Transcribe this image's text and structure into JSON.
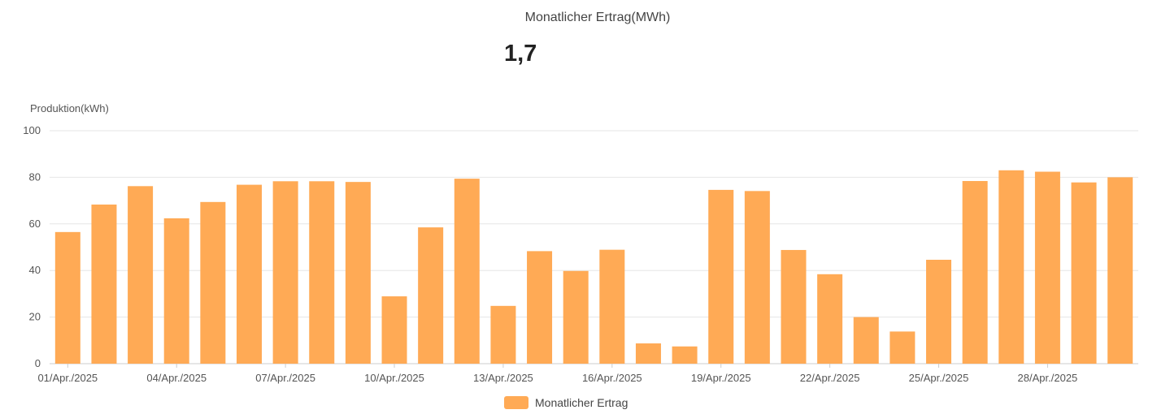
{
  "header": {
    "title": "Monatlicher Ertrag(MWh)",
    "value": "1,7"
  },
  "colors": {
    "bar": "#FFAA55",
    "grid": "#E6E6E6",
    "axis": "#CCCCCC"
  },
  "chart_data": {
    "type": "bar",
    "ylabel": "Produktion(kWh)",
    "ylim": [
      0,
      100
    ],
    "yticks": [
      0,
      20,
      40,
      60,
      80,
      100
    ],
    "grid": true,
    "legend_position": "bottom-center",
    "categories": [
      "01/Apr./2025",
      "02/Apr./2025",
      "03/Apr./2025",
      "04/Apr./2025",
      "05/Apr./2025",
      "06/Apr./2025",
      "07/Apr./2025",
      "08/Apr./2025",
      "09/Apr./2025",
      "10/Apr./2025",
      "11/Apr./2025",
      "12/Apr./2025",
      "13/Apr./2025",
      "14/Apr./2025",
      "15/Apr./2025",
      "16/Apr./2025",
      "17/Apr./2025",
      "18/Apr./2025",
      "19/Apr./2025",
      "20/Apr./2025",
      "21/Apr./2025",
      "22/Apr./2025",
      "23/Apr./2025",
      "24/Apr./2025",
      "25/Apr./2025",
      "26/Apr./2025",
      "27/Apr./2025",
      "28/Apr./2025",
      "29/Apr./2025",
      "30/Apr./2025"
    ],
    "xtick_labels": [
      "01/Apr./2025",
      "04/Apr./2025",
      "07/Apr./2025",
      "10/Apr./2025",
      "13/Apr./2025",
      "16/Apr./2025",
      "19/Apr./2025",
      "22/Apr./2025",
      "25/Apr./2025",
      "28/Apr./2025"
    ],
    "series": [
      {
        "name": "Monatlicher Ertrag",
        "values": [
          56.5,
          68.3,
          76.2,
          62.4,
          69.4,
          76.8,
          78.3,
          78.3,
          78.0,
          28.9,
          58.5,
          79.4,
          24.8,
          48.3,
          39.8,
          48.9,
          8.7,
          7.4,
          74.6,
          74.1,
          48.8,
          38.4,
          20.0,
          13.8,
          44.6,
          78.4,
          83.0,
          82.4,
          77.8,
          80.0
        ]
      }
    ]
  }
}
